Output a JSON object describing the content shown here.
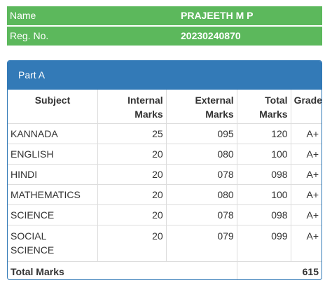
{
  "student": {
    "name_label": "Name",
    "name_value": "PRAJEETH M P",
    "reg_label": "Reg. No.",
    "reg_value": "20230240870"
  },
  "part": {
    "heading": "Part A",
    "headers": {
      "subject": "Subject",
      "internal_1": "Internal",
      "internal_2": "Marks",
      "external_1": "External",
      "external_2": "Marks",
      "total_1": "Total",
      "total_2": "Marks",
      "grade": "Grade"
    },
    "rows": [
      {
        "subject": "KANNADA",
        "internal": "25",
        "external": "095",
        "total": "120",
        "grade": "A+"
      },
      {
        "subject": "ENGLISH",
        "internal": "20",
        "external": "080",
        "total": "100",
        "grade": "A+"
      },
      {
        "subject": "HINDI",
        "internal": "20",
        "external": "078",
        "total": "098",
        "grade": "A+"
      },
      {
        "subject": "MATHEMATICS",
        "internal": "20",
        "external": "080",
        "total": "100",
        "grade": "A+"
      },
      {
        "subject": "SCIENCE",
        "internal": "20",
        "external": "078",
        "total": "098",
        "grade": "A+"
      },
      {
        "subject_1": "SOCIAL",
        "subject_2": "SCIENCE",
        "internal": "20",
        "external": "079",
        "total": "099",
        "grade": "A+"
      }
    ],
    "total_label": "Total Marks",
    "total_value": "615"
  },
  "colors": {
    "info_bar": "#5cb85c",
    "panel_primary": "#337ab7",
    "border": "#dddddd"
  }
}
